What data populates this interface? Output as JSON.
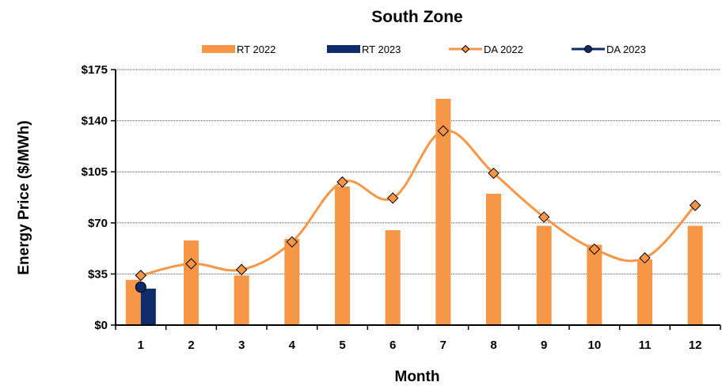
{
  "chart_data": {
    "type": "bar",
    "title": "South Zone",
    "xlabel": "Month",
    "ylabel": "Energy Price ($/MWh)",
    "categories": [
      "1",
      "2",
      "3",
      "4",
      "5",
      "6",
      "7",
      "8",
      "9",
      "10",
      "11",
      "12"
    ],
    "ylim": [
      0,
      175
    ],
    "yticks": [
      0,
      35,
      70,
      105,
      140,
      175
    ],
    "ytick_labels": [
      "$0",
      "$35",
      "$70",
      "$105",
      "$140",
      "$175"
    ],
    "grid": true,
    "legend_position": "top",
    "series": [
      {
        "name": "RT 2022",
        "kind": "bar",
        "color": "#F79646",
        "values": [
          31,
          58,
          34,
          59,
          95,
          65,
          155,
          90,
          68,
          55,
          45,
          68
        ]
      },
      {
        "name": "RT 2023",
        "kind": "bar",
        "color": "#0F2B69",
        "values": [
          25,
          null,
          null,
          null,
          null,
          null,
          null,
          null,
          null,
          null,
          null,
          null
        ]
      },
      {
        "name": "DA 2022",
        "kind": "line",
        "color": "#F79646",
        "marker": "diamond",
        "values": [
          34,
          42,
          38,
          57,
          98,
          87,
          133,
          104,
          74,
          52,
          46,
          82
        ]
      },
      {
        "name": "DA 2023",
        "kind": "line",
        "color": "#0F2B69",
        "marker": "circle",
        "values": [
          26,
          null,
          null,
          null,
          null,
          null,
          null,
          null,
          null,
          null,
          null,
          null
        ]
      }
    ]
  }
}
